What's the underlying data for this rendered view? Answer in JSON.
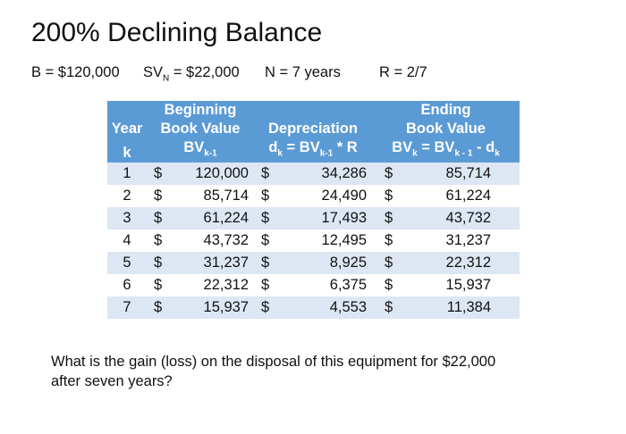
{
  "title": "200% Declining Balance",
  "params": {
    "b": "B = $120,000",
    "sv_pre": "SV",
    "sv_sub": "N",
    "sv_post": " = $22,000",
    "n": "N = 7 years",
    "r": "R = 2/7"
  },
  "table": {
    "headers": {
      "year": "Year",
      "k": "k",
      "bbv_1": "Beginning",
      "bbv_2": "Book Value",
      "bbv_sym": "BV",
      "bbv_sub": "k-1",
      "dep_1": "Depreciation",
      "dep_sym": "d",
      "dep_sub": "k",
      "dep_eq": " = BV",
      "dep_sub2": "k-1",
      "dep_tail": " * R",
      "ebv_1": "Ending",
      "ebv_2": "Book Value",
      "ebv_sym": "BV",
      "ebv_sub": "k",
      "ebv_eq": " = BV",
      "ebv_sub2": "k - 1",
      "ebv_mid": " - d",
      "ebv_sub3": "k"
    },
    "rows": [
      {
        "k": "1",
        "bbv": "120,000",
        "dep": "34,286",
        "ebv": "85,714"
      },
      {
        "k": "2",
        "bbv": "85,714",
        "dep": "24,490",
        "ebv": "61,224"
      },
      {
        "k": "3",
        "bbv": "61,224",
        "dep": "17,493",
        "ebv": "43,732"
      },
      {
        "k": "4",
        "bbv": "43,732",
        "dep": "12,495",
        "ebv": "31,237"
      },
      {
        "k": "5",
        "bbv": "31,237",
        "dep": "8,925",
        "ebv": "22,312"
      },
      {
        "k": "6",
        "bbv": "22,312",
        "dep": "6,375",
        "ebv": "15,937"
      },
      {
        "k": "7",
        "bbv": "15,937",
        "dep": "4,553",
        "ebv": "11,384"
      }
    ],
    "currency": "$"
  },
  "question": "What is the gain (loss) on the disposal of this equipment for $22,000 after seven years?"
}
